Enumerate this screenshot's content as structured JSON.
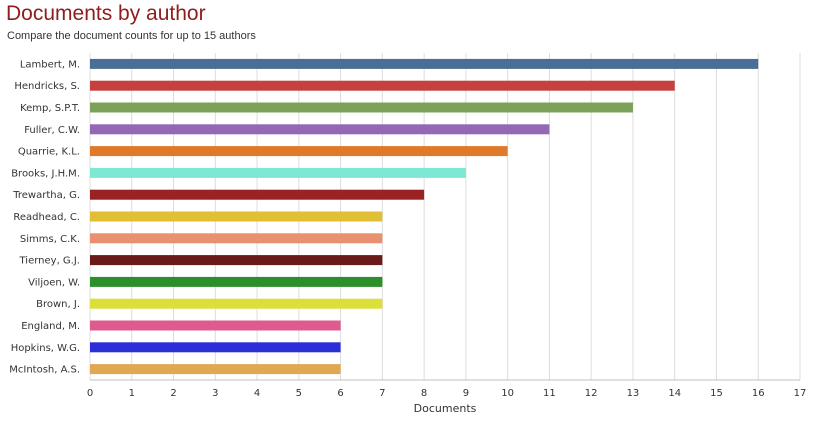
{
  "chart_data": {
    "type": "bar",
    "orientation": "horizontal",
    "title": "Documents by author",
    "subtitle": "Compare the document counts for up to 15 authors",
    "xlabel": "Documents",
    "ylabel": "",
    "xlim": [
      0,
      17
    ],
    "ticks": [
      0,
      1,
      2,
      3,
      4,
      5,
      6,
      7,
      8,
      9,
      10,
      11,
      12,
      13,
      14,
      15,
      16,
      17
    ],
    "grid": true,
    "categories": [
      "Lambert, M.",
      "Hendricks, S.",
      "Kemp, S.P.T.",
      "Fuller, C.W.",
      "Quarrie, K.L.",
      "Brooks, J.H.M.",
      "Trewartha, G.",
      "Readhead, C.",
      "Simms, C.K.",
      "Tierney, G.J.",
      "Viljoen, W.",
      "Brown, J.",
      "England, M.",
      "Hopkins, W.G.",
      "McIntosh, A.S."
    ],
    "values": [
      16,
      14,
      13,
      11,
      10,
      9,
      8,
      7,
      7,
      7,
      7,
      7,
      6,
      6,
      6
    ],
    "colors": [
      "#4a6f96",
      "#c5403f",
      "#7ea15a",
      "#9368b5",
      "#e07a2b",
      "#7ee8d4",
      "#9b2222",
      "#e0bf35",
      "#e8906f",
      "#6b1a1a",
      "#2c8f2c",
      "#dcdf3a",
      "#de5a8f",
      "#2c2fd8",
      "#e0a852"
    ]
  }
}
